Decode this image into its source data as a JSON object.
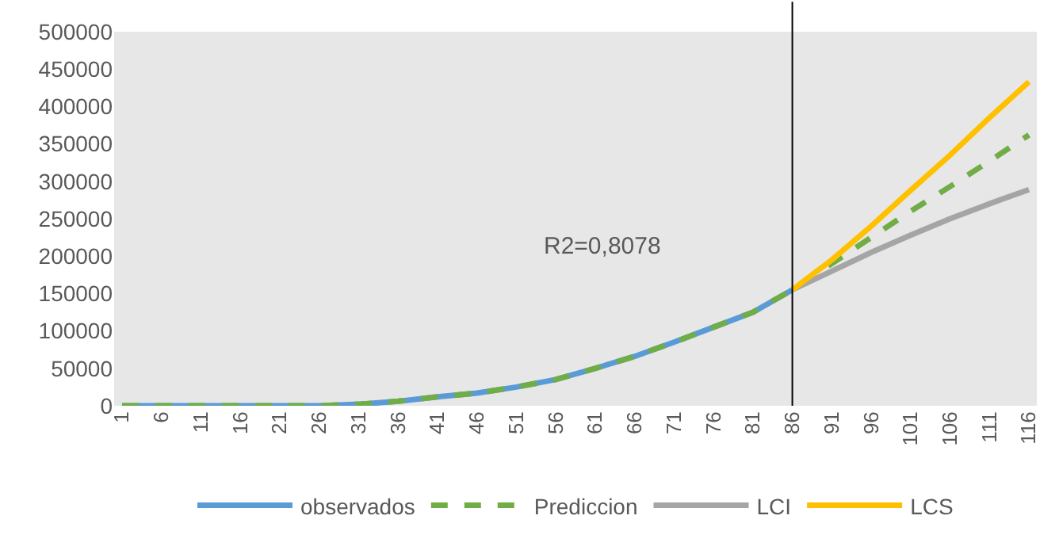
{
  "chart_data": {
    "type": "line",
    "x": [
      1,
      6,
      11,
      16,
      21,
      26,
      31,
      36,
      41,
      46,
      51,
      56,
      61,
      66,
      71,
      76,
      81,
      86,
      91,
      96,
      101,
      106,
      111,
      116
    ],
    "series": [
      {
        "name": "observados",
        "color": "#5b9bd5",
        "line_style": "solid",
        "values": [
          0,
          0,
          0,
          0,
          0,
          0,
          2000,
          6000,
          12000,
          17000,
          25000,
          35000,
          50000,
          66000,
          85000,
          105000,
          125000,
          155000,
          null,
          null,
          null,
          null,
          null,
          null
        ]
      },
      {
        "name": "Prediccion",
        "color": "#70ad47",
        "line_style": "dashed",
        "values": [
          0,
          0,
          0,
          0,
          0,
          0,
          2000,
          6000,
          12000,
          17000,
          25000,
          35000,
          50000,
          66000,
          85000,
          105000,
          125000,
          155000,
          190000,
          225000,
          260000,
          293000,
          327000,
          362000
        ]
      },
      {
        "name": "LCI",
        "color": "#a5a5a5",
        "line_style": "solid",
        "values": [
          null,
          null,
          null,
          null,
          null,
          null,
          null,
          null,
          null,
          null,
          null,
          null,
          null,
          null,
          null,
          null,
          null,
          155000,
          180000,
          205000,
          228000,
          250000,
          270000,
          289000
        ]
      },
      {
        "name": "LCS",
        "color": "#ffc000",
        "line_style": "solid",
        "values": [
          null,
          null,
          null,
          null,
          null,
          null,
          null,
          null,
          null,
          null,
          null,
          null,
          null,
          null,
          null,
          null,
          null,
          155000,
          195000,
          240000,
          288000,
          335000,
          385000,
          433000
        ]
      }
    ],
    "xlim": [
      0,
      117
    ],
    "xticks": [
      1,
      6,
      11,
      16,
      21,
      26,
      31,
      36,
      41,
      46,
      51,
      56,
      61,
      66,
      71,
      76,
      81,
      86,
      91,
      96,
      101,
      106,
      111,
      116
    ],
    "ylim": [
      0,
      500000
    ],
    "yticks": [
      0,
      50000,
      100000,
      150000,
      200000,
      250000,
      300000,
      350000,
      400000,
      450000,
      500000
    ],
    "ref_lines": [
      {
        "axis": "x",
        "value": 86,
        "color": "#000000"
      }
    ],
    "annotations": [
      "R2=0,8078"
    ],
    "grid": false,
    "legend": "bottom",
    "marker": "none"
  }
}
